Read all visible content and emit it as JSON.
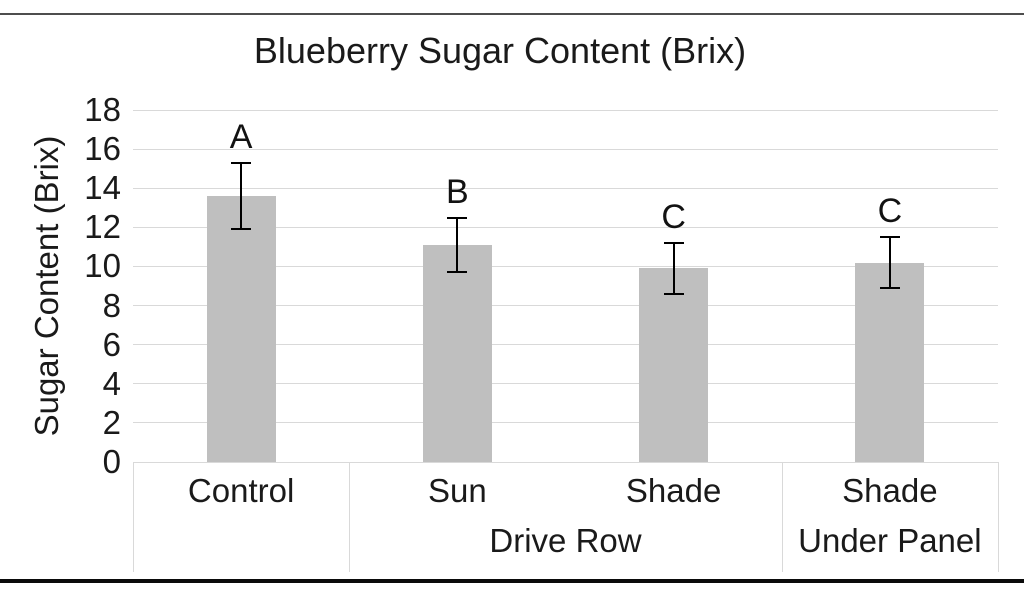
{
  "page": {
    "background": "#ffffff",
    "top_rule_color": "#4d4d4d",
    "bottom_rule_color": "#0a0a0a"
  },
  "chart_data": {
    "type": "bar",
    "title": "Blueberry Sugar Content (Brix)",
    "ylabel": "Sugar Content (Brix)",
    "xlabel": "",
    "ylim": [
      0,
      18
    ],
    "yticks": [
      0,
      2,
      4,
      6,
      8,
      10,
      12,
      14,
      16,
      18
    ],
    "grid": true,
    "legend": "none",
    "bar_color": "#bfbfbf",
    "gridline_color": "#d9d9d9",
    "error_bar_color": "#000000",
    "categories": [
      "Control",
      "Sun",
      "Shade",
      "Shade"
    ],
    "values": [
      13.6,
      11.1,
      9.9,
      10.2
    ],
    "errors": [
      1.7,
      1.4,
      1.3,
      1.3
    ],
    "sig_letters": [
      "A",
      "B",
      "C",
      "C"
    ],
    "group_labels": [
      {
        "label": "",
        "span": [
          0,
          0
        ]
      },
      {
        "label": "Drive Row",
        "span": [
          1,
          2
        ]
      },
      {
        "label": "Under Panel",
        "span": [
          3,
          3
        ]
      }
    ]
  }
}
